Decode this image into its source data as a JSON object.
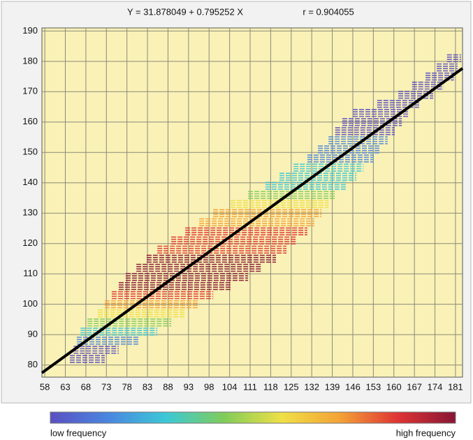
{
  "chart_data": {
    "type": "density",
    "title": "Y = 31.878049 + 0.795252 X",
    "r_label": "r = 0.904055",
    "xlim": [
      57.3,
      183.4
    ],
    "ylim": [
      76,
      191
    ],
    "xticks": [
      58,
      63,
      68,
      73,
      78,
      83,
      88,
      93,
      98,
      104,
      111,
      118,
      125,
      132,
      139,
      146,
      153,
      160,
      167,
      174,
      181
    ],
    "yticks": [
      80,
      90,
      100,
      110,
      120,
      130,
      140,
      150,
      160,
      170,
      180,
      190
    ],
    "grid": true,
    "background": "#f9f1b6",
    "colormap": [
      "#5a4fc2",
      "#4a86e0",
      "#3cc8d6",
      "#80cc5a",
      "#efe046",
      "#f4a236",
      "#df3434",
      "#861535"
    ],
    "rows": [
      {
        "y": 82,
        "x": [
          64.1,
          72.6
        ],
        "level": 0
      },
      {
        "y": 85,
        "x": [
          65.0,
          76.0
        ],
        "level": 0
      },
      {
        "y": 88,
        "x": [
          65.8,
          81.1
        ],
        "level": 1
      },
      {
        "y": 91,
        "x": [
          66.7,
          85.4
        ],
        "level": 2
      },
      {
        "y": 94,
        "x": [
          68.4,
          88.8
        ],
        "level": 3
      },
      {
        "y": 97,
        "x": [
          70.9,
          92.2
        ],
        "level": 4
      },
      {
        "y": 100,
        "x": [
          72.6,
          95.6
        ],
        "level": 5
      },
      {
        "y": 103,
        "x": [
          74.3,
          99.2
        ],
        "level": 6
      },
      {
        "y": 106,
        "x": [
          76.0,
          104.3
        ],
        "level": 7
      },
      {
        "y": 109,
        "x": [
          77.7,
          110.3
        ],
        "level": 7
      },
      {
        "y": 112,
        "x": [
          80.3,
          115.0
        ],
        "level": 7
      },
      {
        "y": 115,
        "x": [
          82.8,
          119.8
        ],
        "level": 7
      },
      {
        "y": 118,
        "x": [
          85.4,
          123.4
        ],
        "level": 6
      },
      {
        "y": 121,
        "x": [
          88.8,
          126.9
        ],
        "level": 6
      },
      {
        "y": 124,
        "x": [
          92.2,
          130.5
        ],
        "level": 6
      },
      {
        "y": 127,
        "x": [
          95.6,
          132.9
        ],
        "level": 5
      },
      {
        "y": 130,
        "x": [
          99.2,
          135.3
        ],
        "level": 5
      },
      {
        "y": 133,
        "x": [
          104.3,
          137.7
        ],
        "level": 4
      },
      {
        "y": 136,
        "x": [
          110.3,
          140.0
        ],
        "level": 3
      },
      {
        "y": 139,
        "x": [
          116.2,
          143.6
        ],
        "level": 2
      },
      {
        "y": 142,
        "x": [
          121.0,
          147.2
        ],
        "level": 2
      },
      {
        "y": 145,
        "x": [
          125.8,
          149.6
        ],
        "level": 2
      },
      {
        "y": 148,
        "x": [
          130.5,
          153.1
        ],
        "level": 1
      },
      {
        "y": 151,
        "x": [
          134.1,
          155.5
        ],
        "level": 1
      },
      {
        "y": 154,
        "x": [
          137.7,
          157.9
        ],
        "level": 1
      },
      {
        "y": 157,
        "x": [
          140.0,
          160.3
        ],
        "level": 0
      },
      {
        "y": 160,
        "x": [
          142.4,
          162.7
        ],
        "level": 0
      },
      {
        "y": 163,
        "x": [
          146.0,
          165.0
        ],
        "level": 0
      },
      {
        "y": 166,
        "x": [
          154.3,
          168.6
        ],
        "level": 0
      },
      {
        "y": 169,
        "x": [
          161.5,
          173.4
        ],
        "level": 0
      },
      {
        "y": 172,
        "x": [
          166.2,
          177.0
        ],
        "level": 0
      },
      {
        "y": 175,
        "x": [
          170.8,
          180.5
        ],
        "level": 0
      },
      {
        "y": 178,
        "x": [
          174.6,
          181.7
        ],
        "level": 0
      },
      {
        "y": 181,
        "x": [
          178.1,
          182.9
        ],
        "level": 0
      }
    ],
    "regression": {
      "color": "#000000",
      "x": [
        57.3,
        183.4
      ],
      "y": [
        77.4,
        177.7
      ]
    },
    "colorbar": {
      "low_label": "low frequency",
      "high_label": "high frequency"
    }
  }
}
